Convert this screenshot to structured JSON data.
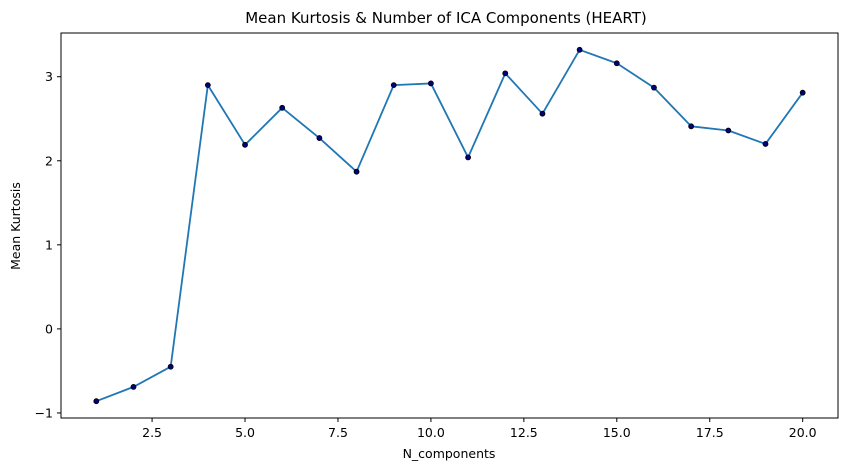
{
  "chart_data": {
    "type": "line",
    "title": "Mean Kurtosis & Number of ICA Components (HEART)",
    "xlabel": "N_components",
    "ylabel": "Mean Kurtosis",
    "xlim": [
      0.05,
      20.95
    ],
    "ylim": [
      -1.06,
      3.52
    ],
    "x_ticks": [
      2.5,
      5.0,
      7.5,
      10.0,
      12.5,
      15.0,
      17.5,
      20.0
    ],
    "x_tick_labels": [
      "2.5",
      "5.0",
      "7.5",
      "10.0",
      "12.5",
      "15.0",
      "17.5",
      "20.0"
    ],
    "y_ticks": [
      -1,
      0,
      1,
      2,
      3
    ],
    "y_tick_labels": [
      "−1",
      "0",
      "1",
      "2",
      "3"
    ],
    "grid": false,
    "legend": "none",
    "series": [
      {
        "x": [
          1,
          2,
          3,
          4,
          5,
          6,
          7,
          8,
          9,
          10,
          11,
          12,
          13,
          14,
          15,
          16,
          17,
          18,
          19,
          20
        ],
        "values": [
          -0.86,
          -0.69,
          -0.45,
          2.9,
          2.19,
          2.63,
          2.27,
          1.87,
          2.9,
          2.92,
          2.04,
          3.04,
          2.56,
          3.32,
          3.16,
          2.87,
          2.41,
          2.36,
          2.2,
          2.81
        ],
        "line_color": "#1f77b4",
        "marker_color": "#000080",
        "marker_edge_color": "#000000"
      }
    ]
  }
}
